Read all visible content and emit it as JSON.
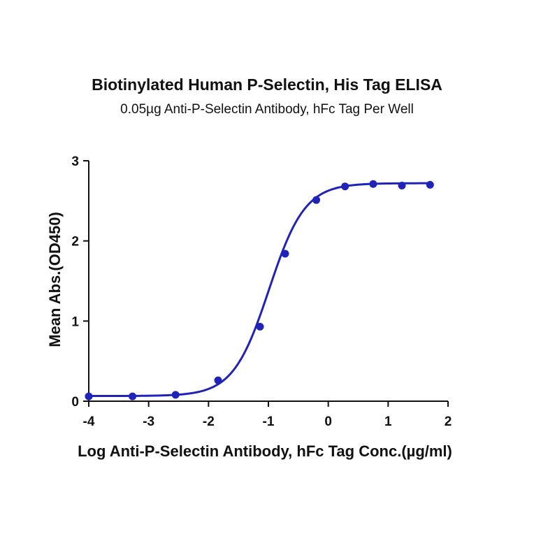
{
  "chart_data": {
    "type": "scatter",
    "title": "Biotinylated Human P-Selectin, His Tag ELISA",
    "subtitle": "0.05µg Anti-P-Selectin Antibody, hFc Tag Per Well",
    "xlabel": "Log Anti-P-Selectin Antibody, hFc Tag Conc.(µg/ml)",
    "ylabel": "Mean Abs.(OD450)",
    "xlim": [
      -4,
      2
    ],
    "ylim": [
      0,
      3
    ],
    "xticks": [
      -4,
      -3,
      -2,
      -1,
      0,
      1,
      2
    ],
    "yticks": [
      0,
      1,
      2,
      3
    ],
    "color": "#1f23b8",
    "series": [
      {
        "x": [
          -4.0,
          -3.27,
          -2.55,
          -1.84,
          -1.14,
          -0.72,
          -0.2,
          0.28,
          0.75,
          1.23,
          1.7
        ],
        "y": [
          0.06,
          0.06,
          0.08,
          0.26,
          0.93,
          1.84,
          2.51,
          2.68,
          2.71,
          2.69,
          2.7
        ]
      }
    ],
    "fit_curve": {
      "model": "4PL",
      "bottom": 0.065,
      "top": 2.72,
      "logEC50": -0.99,
      "hill": 1.45
    },
    "grid": false,
    "legend": "none"
  }
}
